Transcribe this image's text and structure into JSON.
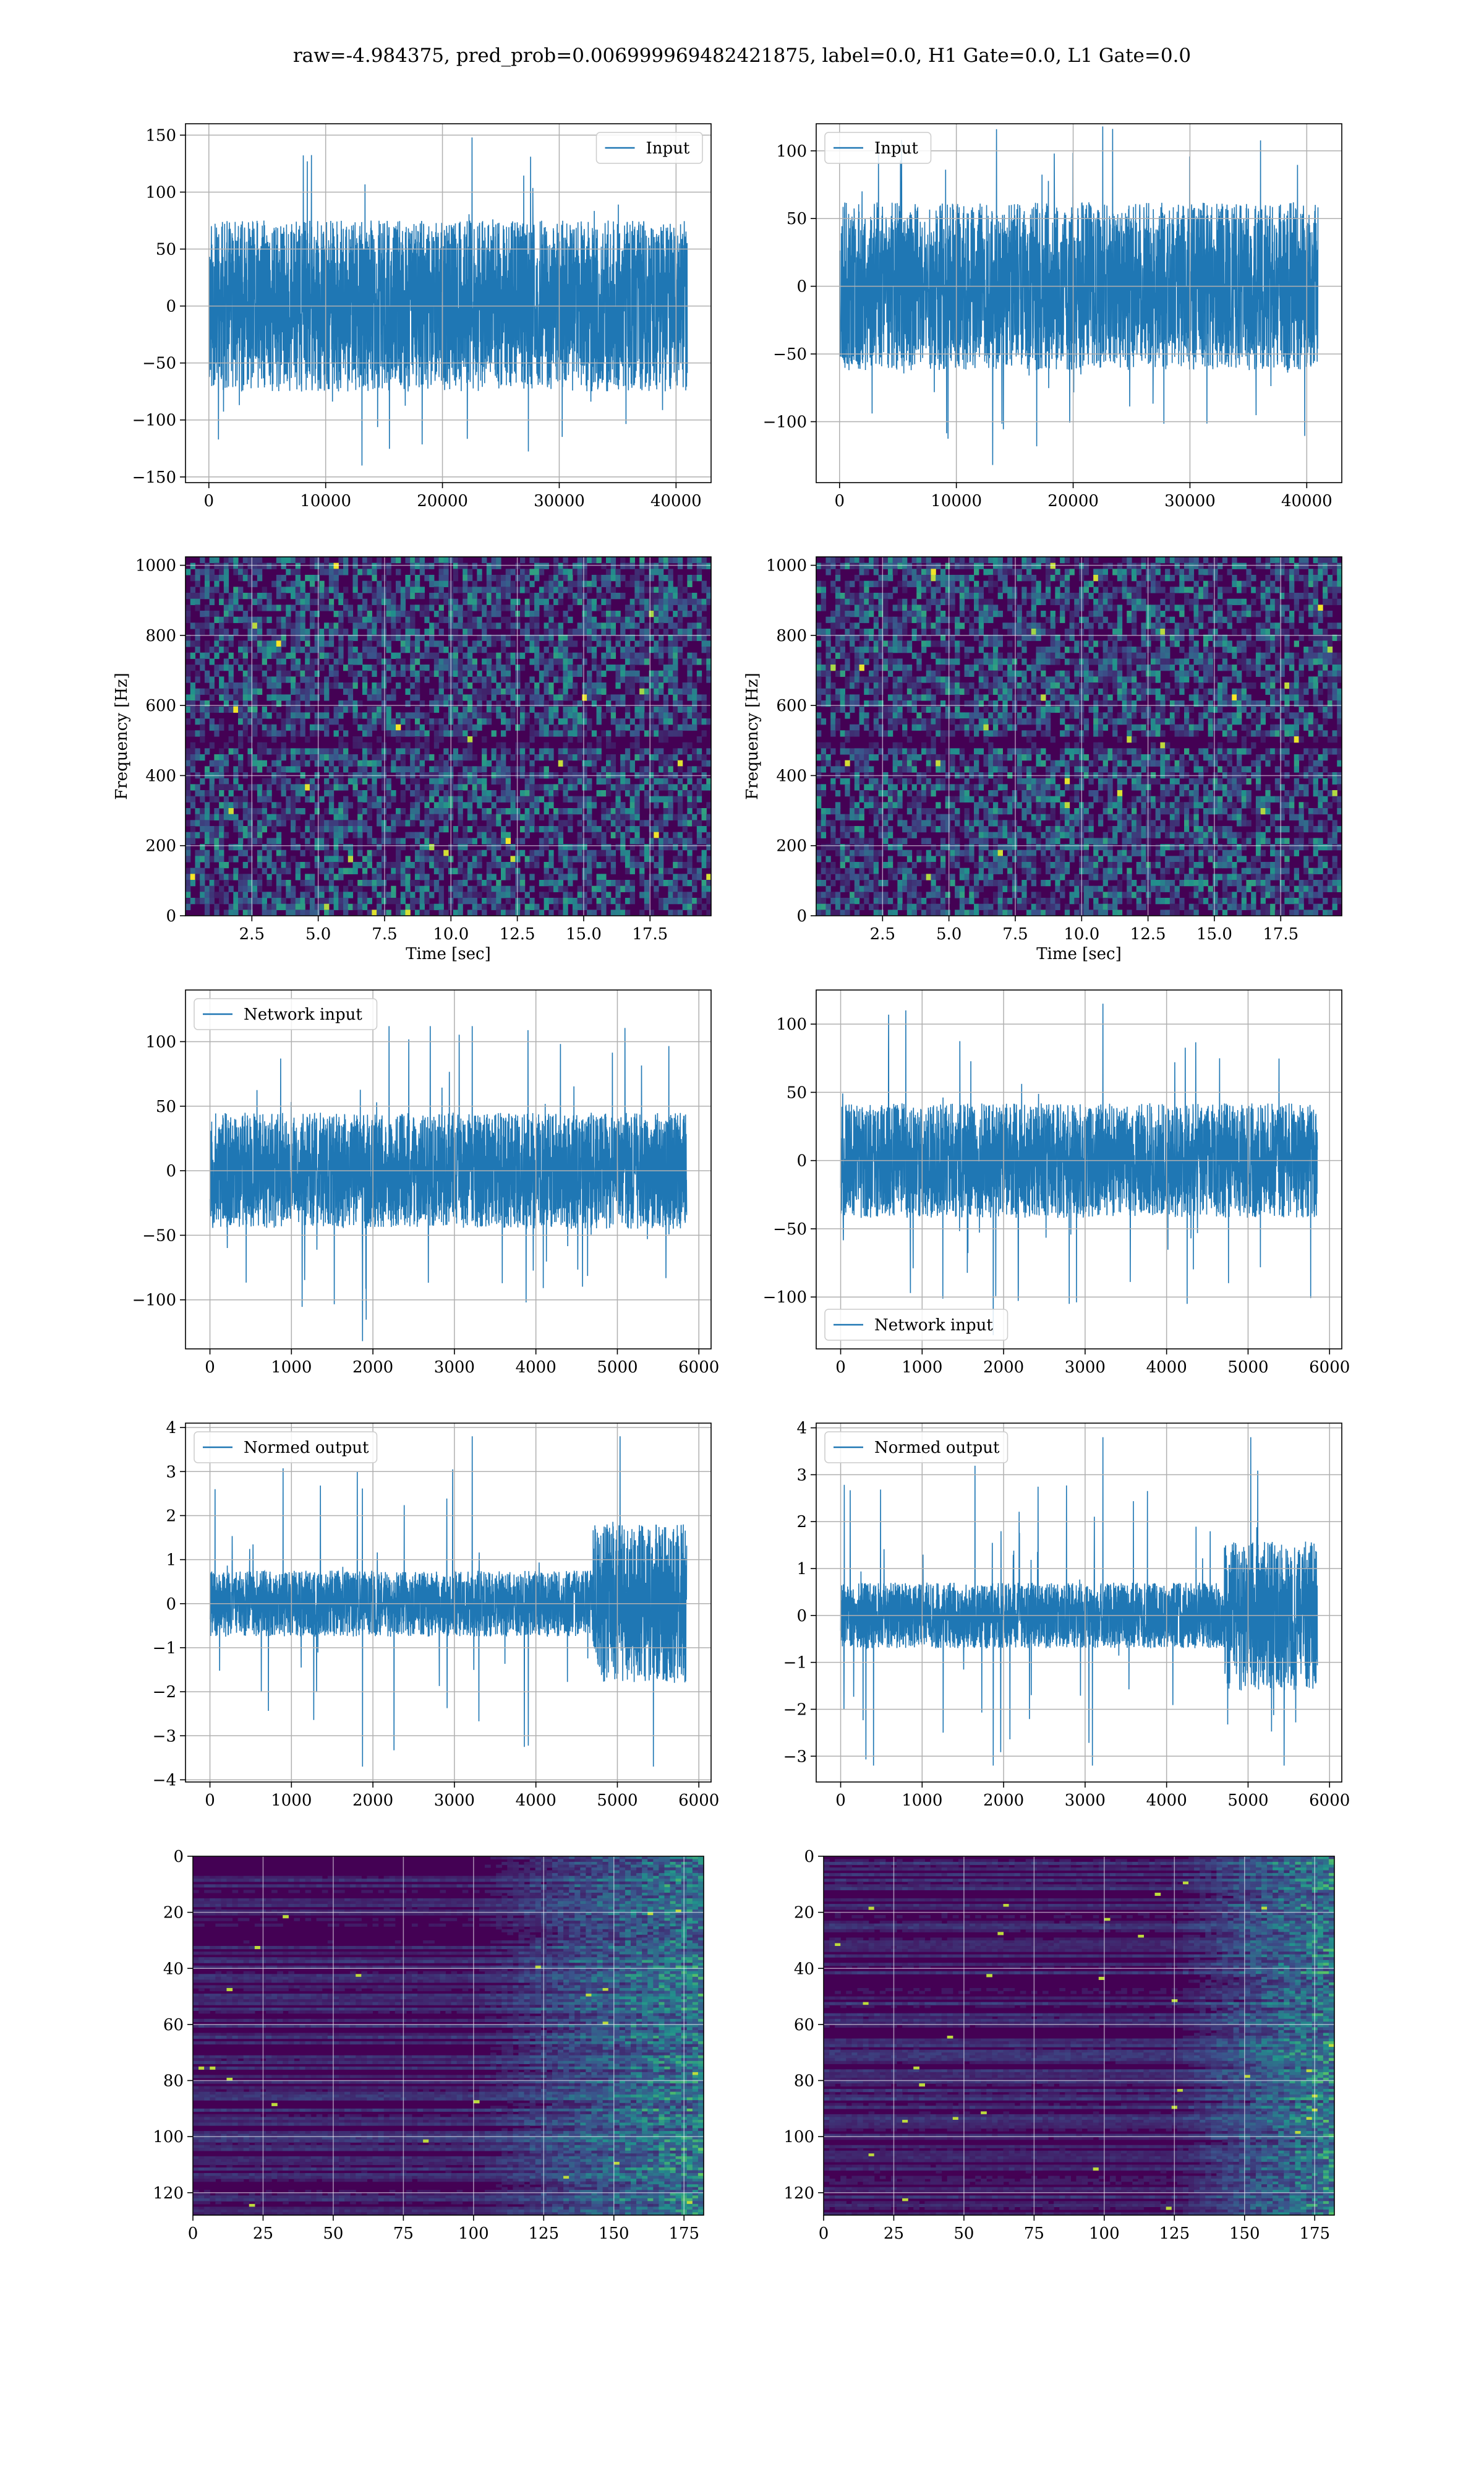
{
  "figure_title": "raw=-4.984375, pred_prob=0.006999969482421875, label=0.0, H1 Gate=0.0, L1 Gate=0.0",
  "colors": {
    "line": "#1f77b4",
    "grid": "#b0b0b0",
    "viridis_low": "#440154",
    "viridis_high": "#fde725"
  },
  "chart_data": [
    {
      "id": "h1-input",
      "type": "line",
      "title": "",
      "xlabel": "",
      "ylabel": "",
      "xlim": [
        -2000,
        43000
      ],
      "ylim": [
        -155,
        160
      ],
      "xticks": [
        0,
        10000,
        20000,
        30000,
        40000
      ],
      "xtick_labels": [
        "0",
        "10000",
        "20000",
        "30000",
        "40000"
      ],
      "yticks": [
        -150,
        -100,
        -50,
        0,
        50,
        100,
        150
      ],
      "ytick_labels": [
        "−150",
        "−100",
        "−50",
        "0",
        "50",
        "100",
        "150"
      ],
      "series": [
        {
          "name": "Input",
          "x_range": [
            0,
            40960
          ],
          "band": 75,
          "peak": 148,
          "trough": -140,
          "seed": 11
        }
      ],
      "legend": "upper right",
      "grid": true
    },
    {
      "id": "l1-input",
      "type": "line",
      "title": "",
      "xlabel": "",
      "ylabel": "",
      "xlim": [
        -2000,
        43000
      ],
      "ylim": [
        -145,
        120
      ],
      "xticks": [
        0,
        10000,
        20000,
        30000,
        40000
      ],
      "xtick_labels": [
        "0",
        "10000",
        "20000",
        "30000",
        "40000"
      ],
      "yticks": [
        -100,
        -50,
        0,
        50,
        100
      ],
      "ytick_labels": [
        "−100",
        "−50",
        "0",
        "50",
        "100"
      ],
      "series": [
        {
          "name": "Input",
          "x_range": [
            0,
            40960
          ],
          "band": 62,
          "peak": 118,
          "trough": -132,
          "seed": 23
        }
      ],
      "legend": "upper left",
      "grid": true
    },
    {
      "id": "h1-spectrogram",
      "type": "heatmap",
      "title": "",
      "xlabel": "Time [sec]",
      "ylabel": "Frequency [Hz]",
      "xlim": [
        0,
        19.8
      ],
      "ylim": [
        0,
        1024
      ],
      "xticks": [
        2.5,
        5.0,
        7.5,
        10.0,
        12.5,
        15.0,
        17.5
      ],
      "xtick_labels": [
        "2.5",
        "5.0",
        "7.5",
        "10.0",
        "12.5",
        "15.0",
        "17.5"
      ],
      "yticks": [
        0,
        200,
        400,
        600,
        800,
        1000
      ],
      "ytick_labels": [
        "0",
        "200",
        "400",
        "600",
        "800",
        "1000"
      ],
      "colormap": "viridis",
      "dark_band_hz": 500,
      "grid": true,
      "seed": 31
    },
    {
      "id": "l1-spectrogram",
      "type": "heatmap",
      "title": "",
      "xlabel": "Time [sec]",
      "ylabel": "Frequency [Hz]",
      "xlim": [
        0,
        19.8
      ],
      "ylim": [
        0,
        1024
      ],
      "xticks": [
        2.5,
        5.0,
        7.5,
        10.0,
        12.5,
        15.0,
        17.5
      ],
      "xtick_labels": [
        "2.5",
        "5.0",
        "7.5",
        "10.0",
        "12.5",
        "15.0",
        "17.5"
      ],
      "yticks": [
        0,
        200,
        400,
        600,
        800,
        1000
      ],
      "ytick_labels": [
        "0",
        "200",
        "400",
        "600",
        "800",
        "1000"
      ],
      "colormap": "viridis",
      "dark_band_hz": 500,
      "grid": true,
      "seed": 47
    },
    {
      "id": "h1-network-input",
      "type": "line",
      "title": "",
      "xlabel": "",
      "ylabel": "",
      "xlim": [
        -300,
        6150
      ],
      "ylim": [
        -138,
        140
      ],
      "xticks": [
        0,
        1000,
        2000,
        3000,
        4000,
        5000,
        6000
      ],
      "xtick_labels": [
        "0",
        "1000",
        "2000",
        "3000",
        "4000",
        "5000",
        "6000"
      ],
      "yticks": [
        -100,
        -50,
        0,
        50,
        100
      ],
      "ytick_labels": [
        "−100",
        "−50",
        "0",
        "50",
        "100"
      ],
      "series": [
        {
          "name": "Network input",
          "x_range": [
            0,
            5850
          ],
          "band": 45,
          "peak": 112,
          "trough": -132,
          "seed": 53
        }
      ],
      "legend": "upper left",
      "grid": true
    },
    {
      "id": "l1-network-input",
      "type": "line",
      "title": "",
      "xlabel": "",
      "ylabel": "",
      "xlim": [
        -300,
        6150
      ],
      "ylim": [
        -138,
        125
      ],
      "xticks": [
        0,
        1000,
        2000,
        3000,
        4000,
        5000,
        6000
      ],
      "xtick_labels": [
        "0",
        "1000",
        "2000",
        "3000",
        "4000",
        "5000",
        "6000"
      ],
      "yticks": [
        -100,
        -50,
        0,
        50,
        100
      ],
      "ytick_labels": [
        "−100",
        "−50",
        "0",
        "50",
        "100"
      ],
      "series": [
        {
          "name": "Network input",
          "x_range": [
            0,
            5850
          ],
          "band": 42,
          "peak": 115,
          "trough": -128,
          "seed": 67
        }
      ],
      "legend": "lower left",
      "grid": true
    },
    {
      "id": "h1-normed-output",
      "type": "line",
      "title": "",
      "xlabel": "",
      "ylabel": "",
      "xlim": [
        -300,
        6150
      ],
      "ylim": [
        -4.05,
        4.1
      ],
      "xticks": [
        0,
        1000,
        2000,
        3000,
        4000,
        5000,
        6000
      ],
      "xtick_labels": [
        "0",
        "1000",
        "2000",
        "3000",
        "4000",
        "5000",
        "6000"
      ],
      "yticks": [
        -4,
        -3,
        -2,
        -1,
        0,
        1,
        2,
        3,
        4
      ],
      "ytick_labels": [
        "−4",
        "−3",
        "−2",
        "−1",
        "0",
        "1",
        "2",
        "3",
        "4"
      ],
      "series": [
        {
          "name": "Normed output",
          "x_range": [
            0,
            5850
          ],
          "band": 0.75,
          "peak": 3.8,
          "trough": -3.7,
          "burst_from": 4700,
          "burst_band": 1.8,
          "seed": 71
        }
      ],
      "legend": "upper left",
      "grid": true
    },
    {
      "id": "l1-normed-output",
      "type": "line",
      "title": "",
      "xlabel": "",
      "ylabel": "",
      "xlim": [
        -300,
        6150
      ],
      "ylim": [
        -3.55,
        4.1
      ],
      "xticks": [
        0,
        1000,
        2000,
        3000,
        4000,
        5000,
        6000
      ],
      "xtick_labels": [
        "0",
        "1000",
        "2000",
        "3000",
        "4000",
        "5000",
        "6000"
      ],
      "yticks": [
        -3,
        -2,
        -1,
        0,
        1,
        2,
        3,
        4
      ],
      "ytick_labels": [
        "−3",
        "−2",
        "−1",
        "0",
        "1",
        "2",
        "3",
        "4"
      ],
      "series": [
        {
          "name": "Normed output",
          "x_range": [
            0,
            5850
          ],
          "band": 0.7,
          "peak": 3.8,
          "trough": -3.2,
          "burst_from": 4700,
          "burst_band": 1.6,
          "seed": 83
        }
      ],
      "legend": "upper left",
      "grid": true
    },
    {
      "id": "h1-feature-map",
      "type": "heatmap",
      "title": "",
      "xlabel": "",
      "ylabel": "",
      "xlim": [
        0,
        182
      ],
      "ylim": [
        128,
        0
      ],
      "xticks": [
        0,
        25,
        50,
        75,
        100,
        125,
        150,
        175
      ],
      "xtick_labels": [
        "0",
        "25",
        "50",
        "75",
        "100",
        "125",
        "150",
        "175"
      ],
      "yticks": [
        0,
        20,
        40,
        60,
        80,
        100,
        120
      ],
      "ytick_labels": [
        "0",
        "20",
        "40",
        "60",
        "80",
        "100",
        "120"
      ],
      "colormap": "viridis",
      "bright_from": 100,
      "grid": true,
      "seed": 97
    },
    {
      "id": "l1-feature-map",
      "type": "heatmap",
      "title": "",
      "xlabel": "",
      "ylabel": "",
      "xlim": [
        0,
        182
      ],
      "ylim": [
        128,
        0
      ],
      "xticks": [
        0,
        25,
        50,
        75,
        100,
        125,
        150,
        175
      ],
      "xtick_labels": [
        "0",
        "25",
        "50",
        "75",
        "100",
        "125",
        "150",
        "175"
      ],
      "yticks": [
        0,
        20,
        40,
        60,
        80,
        100,
        120
      ],
      "ytick_labels": [
        "0",
        "20",
        "40",
        "60",
        "80",
        "100",
        "120"
      ],
      "colormap": "viridis",
      "bright_from": 125,
      "grid": true,
      "seed": 101
    }
  ]
}
